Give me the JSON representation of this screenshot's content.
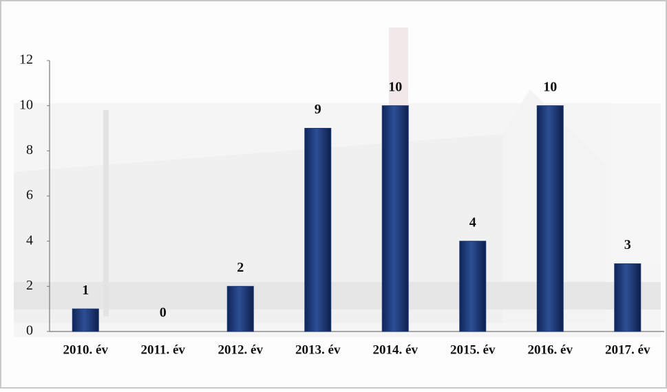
{
  "chart_data": {
    "type": "bar",
    "categories": [
      "2010. év",
      "2011. év",
      "2012. év",
      "2013. év",
      "2014. év",
      "2015. év",
      "2016. év",
      "2017. év"
    ],
    "values": [
      1,
      0,
      2,
      9,
      10,
      4,
      10,
      3
    ],
    "color": "#1f3a7a",
    "ylim": [
      0,
      12
    ],
    "yticks": [
      0,
      2,
      4,
      6,
      8,
      10,
      12
    ]
  }
}
